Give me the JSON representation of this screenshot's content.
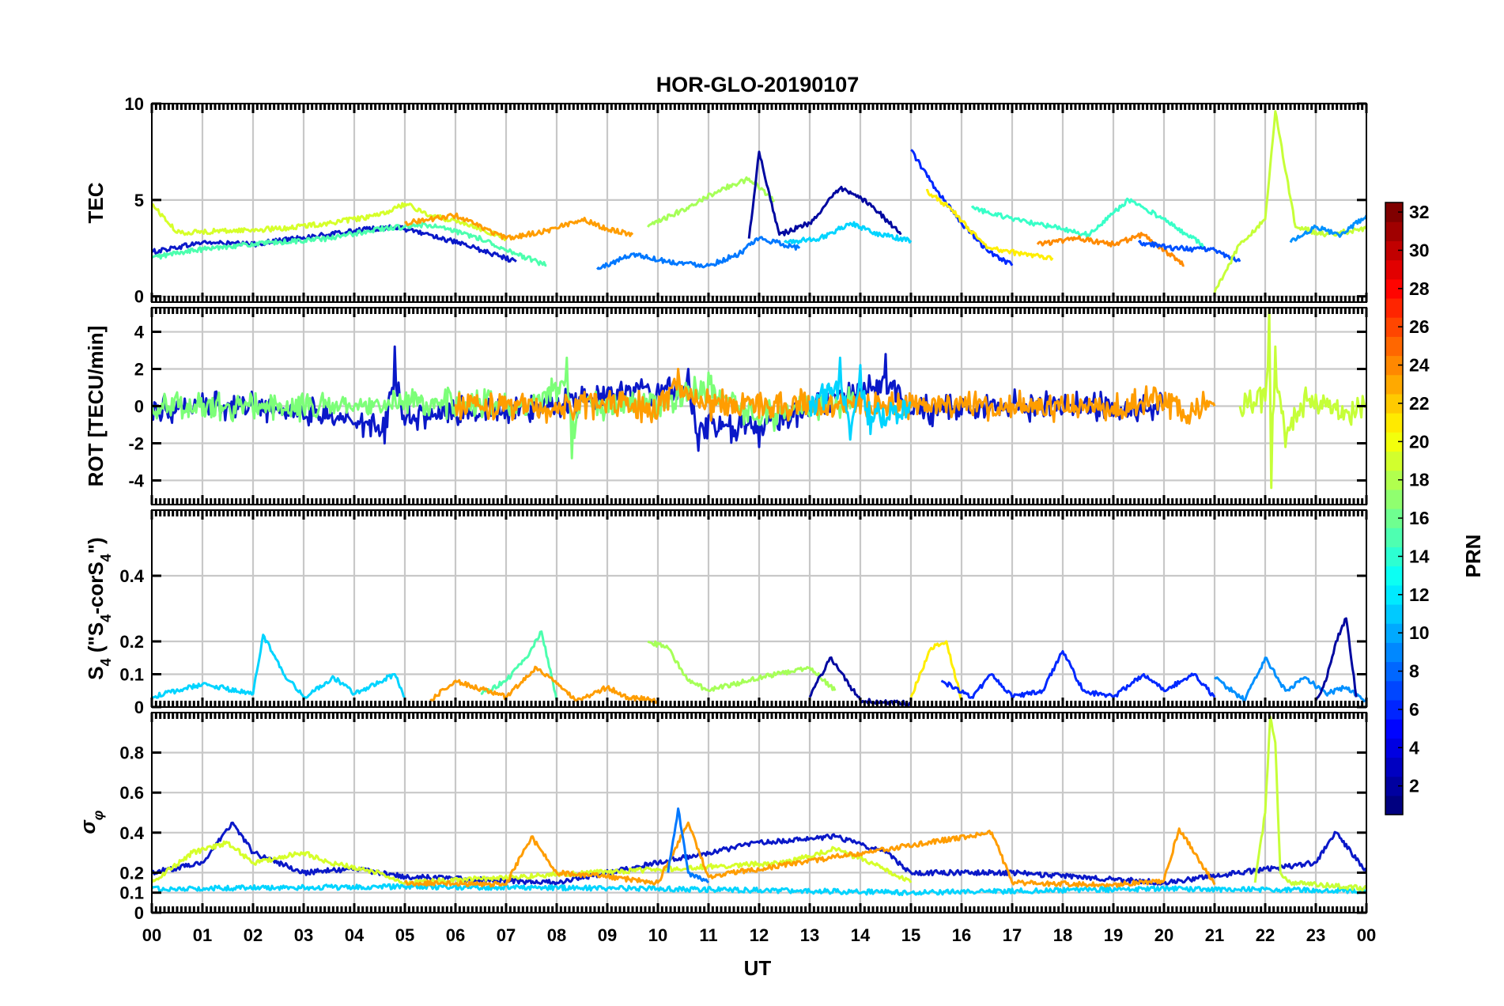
{
  "chart_data": {
    "type": "line",
    "title": "HOR-GLO-20190107",
    "x_label": "UT",
    "x_ticks": [
      "00",
      "01",
      "02",
      "03",
      "04",
      "05",
      "06",
      "07",
      "08",
      "09",
      "10",
      "11",
      "12",
      "13",
      "14",
      "15",
      "16",
      "17",
      "18",
      "19",
      "20",
      "21",
      "22",
      "23",
      "00"
    ],
    "x_range_hours": [
      0,
      24
    ],
    "colorbar": {
      "label": "PRN",
      "range": [
        1,
        32
      ],
      "ticks": [
        2,
        4,
        6,
        8,
        10,
        12,
        14,
        16,
        18,
        20,
        22,
        24,
        26,
        28,
        30,
        32
      ],
      "colormap": "jet"
    },
    "panels": [
      {
        "id": "tec",
        "ylabel": "TEC",
        "ylim": [
          -0.3,
          10
        ],
        "yticks": [
          0,
          5,
          10
        ],
        "series": [
          {
            "prn": 3,
            "color": "#0a18c8",
            "x": [
              0.0,
              1.0,
              2.0,
              2.8,
              3.5,
              4.0,
              4.8,
              5.5,
              6.5,
              7.2
            ],
            "y": [
              2.3,
              2.8,
              2.7,
              3.0,
              3.2,
              3.4,
              3.6,
              3.2,
              2.4,
              1.8
            ]
          },
          {
            "prn": 19,
            "color": "#d6ff2a",
            "x": [
              0.0,
              0.5,
              1.5,
              2.5,
              3.5,
              4.5,
              5.0,
              5.5,
              6.2,
              7.0
            ],
            "y": [
              4.8,
              3.3,
              3.4,
              3.5,
              3.8,
              4.2,
              4.8,
              4.2,
              3.8,
              3.0
            ]
          },
          {
            "prn": 15,
            "color": "#4cffae",
            "x": [
              0.0,
              0.6,
              1.5,
              2.5,
              3.5,
              4.5,
              5.5,
              6.5,
              7.2,
              7.8
            ],
            "y": [
              2.0,
              2.3,
              2.6,
              2.8,
              3.0,
              3.5,
              3.7,
              3.0,
              2.2,
              1.6
            ]
          },
          {
            "prn": 22,
            "color": "#ff9d00",
            "x": [
              5.0,
              6.0,
              7.0,
              7.8,
              8.5,
              9.0,
              9.5
            ],
            "y": [
              3.8,
              4.2,
              3.0,
              3.4,
              4.0,
              3.5,
              3.2
            ]
          },
          {
            "prn": 10,
            "color": "#0078ff",
            "x": [
              8.8,
              9.5,
              10.2,
              11.0,
              11.6,
              12.0,
              12.8
            ],
            "y": [
              1.4,
              2.2,
              1.8,
              1.6,
              2.2,
              3.0,
              2.5
            ]
          },
          {
            "prn": 17,
            "color": "#a6ff58",
            "x": [
              9.8,
              10.5,
              11.2,
              11.8,
              12.3
            ],
            "y": [
              3.6,
              4.5,
              5.5,
              6.1,
              5.0
            ]
          },
          {
            "prn": 2,
            "color": "#0008a0",
            "x": [
              11.8,
              12.0,
              12.4,
              13.0,
              13.6,
              14.2,
              14.8
            ],
            "y": [
              3.0,
              7.5,
              3.2,
              3.8,
              5.6,
              4.8,
              3.2
            ]
          },
          {
            "prn": 12,
            "color": "#00d4ff",
            "x": [
              12.5,
              13.2,
              13.8,
              14.4,
              15.0
            ],
            "y": [
              2.8,
              3.0,
              3.8,
              3.2,
              2.9
            ]
          },
          {
            "prn": 4,
            "color": "#0028ff",
            "x": [
              15.0,
              15.5,
              16.0,
              16.5,
              17.0
            ],
            "y": [
              7.6,
              5.5,
              3.8,
              2.4,
              1.6
            ]
          },
          {
            "prn": 20,
            "color": "#ffee00",
            "x": [
              15.3,
              15.8,
              16.5,
              17.2,
              17.8
            ],
            "y": [
              5.5,
              4.5,
              2.5,
              2.2,
              2.0
            ]
          },
          {
            "prn": 14,
            "color": "#38ffc8",
            "x": [
              16.2,
              17.0,
              17.8,
              18.5,
              19.3,
              20.0,
              20.8
            ],
            "y": [
              4.6,
              4.0,
              3.6,
              3.2,
              5.0,
              4.0,
              2.6
            ]
          },
          {
            "prn": 23,
            "color": "#ff8a00",
            "x": [
              17.5,
              18.3,
              19.0,
              19.6,
              20.4
            ],
            "y": [
              2.7,
              3.0,
              2.7,
              3.2,
              1.6
            ]
          },
          {
            "prn": 7,
            "color": "#0050ff",
            "x": [
              19.5,
              20.2,
              21.0,
              21.5
            ],
            "y": [
              2.8,
              2.5,
              2.4,
              1.8
            ]
          },
          {
            "prn": 18,
            "color": "#c6ff38",
            "x": [
              21.0,
              21.5,
              22.0,
              22.2,
              22.6,
              23.2,
              24.0
            ],
            "y": [
              0.2,
              2.7,
              4.0,
              9.6,
              3.6,
              3.2,
              3.5
            ]
          },
          {
            "prn": 9,
            "color": "#0090ff",
            "x": [
              22.5,
              23.0,
              23.5,
              24.0
            ],
            "y": [
              2.8,
              3.6,
              3.2,
              4.2
            ]
          }
        ]
      },
      {
        "id": "rot",
        "ylabel": "ROT [TECU/min]",
        "ylim": [
          -5.3,
          5.3
        ],
        "yticks": [
          -4,
          -2,
          0,
          2,
          4
        ],
        "series": [
          {
            "prn": 3,
            "color": "#0a18c8",
            "x": [
              0.0,
              2.0,
              4.6,
              4.8,
              5.0,
              8.0,
              10.6,
              10.8,
              12.0,
              14.5,
              15.0,
              17.0,
              20.0
            ],
            "y": [
              0.0,
              0.1,
              -2.0,
              3.2,
              -1.0,
              0.2,
              2.0,
              -2.4,
              -2.2,
              2.8,
              -0.4,
              0.1,
              -0.2
            ]
          },
          {
            "prn": 16,
            "color": "#7cff78",
            "x": [
              0.0,
              3.0,
              5.0,
              7.5,
              8.2,
              8.3,
              8.5,
              10.0,
              11.0,
              12.0,
              14.0
            ],
            "y": [
              0.1,
              -0.2,
              0.3,
              0.1,
              2.6,
              -2.8,
              0.4,
              0.0,
              1.8,
              -1.0,
              0.3
            ]
          },
          {
            "prn": 22,
            "color": "#ff9d00",
            "x": [
              6.0,
              8.0,
              9.0,
              10.0,
              10.4,
              11.0,
              17.0,
              19.0,
              19.8,
              20.4,
              21.0
            ],
            "y": [
              0.1,
              -0.3,
              0.4,
              -0.4,
              2.0,
              0.2,
              0.1,
              -0.4,
              1.0,
              -0.6,
              0.0
            ]
          },
          {
            "prn": 12,
            "color": "#00d4ff",
            "x": [
              13.0,
              13.6,
              13.8,
              14.0,
              14.2,
              15.0
            ],
            "y": [
              0.3,
              2.6,
              -1.8,
              2.2,
              -1.5,
              0.2
            ]
          },
          {
            "prn": 18,
            "color": "#c6ff38",
            "x": [
              21.5,
              22.0,
              22.08,
              22.12,
              22.2,
              22.4,
              22.8,
              23.5,
              24.0
            ],
            "y": [
              0.0,
              0.3,
              5.2,
              -4.4,
              3.2,
              -2.2,
              1.0,
              -0.6,
              0.1
            ]
          }
        ]
      },
      {
        "id": "s4",
        "ylabel": "S4 (\"S4-corS4\")",
        "ylim": [
          0,
          0.6
        ],
        "yticks": [
          0,
          0.1,
          0.2,
          0.4
        ],
        "series": [
          {
            "prn": 12,
            "color": "#00d4ff",
            "x": [
              0.0,
              1.0,
              2.0,
              2.2,
              2.6,
              3.0,
              3.6,
              4.0,
              4.8,
              5.0
            ],
            "y": [
              0.03,
              0.07,
              0.04,
              0.22,
              0.1,
              0.03,
              0.09,
              0.04,
              0.1,
              0.03
            ]
          },
          {
            "prn": 15,
            "color": "#4cffae",
            "x": [
              6.5,
              7.0,
              7.4,
              7.7,
              8.0
            ],
            "y": [
              0.04,
              0.08,
              0.15,
              0.23,
              0.02
            ]
          },
          {
            "prn": 22,
            "color": "#ff9d00",
            "x": [
              5.5,
              6.0,
              7.0,
              7.6,
              8.4,
              9.0,
              9.4,
              10.0
            ],
            "y": [
              0.02,
              0.08,
              0.03,
              0.12,
              0.02,
              0.06,
              0.03,
              0.02
            ]
          },
          {
            "prn": 17,
            "color": "#a6ff58",
            "x": [
              9.8,
              10.2,
              10.6,
              11.0,
              12.0,
              13.0,
              13.5
            ],
            "y": [
              0.2,
              0.18,
              0.08,
              0.05,
              0.09,
              0.12,
              0.05
            ]
          },
          {
            "prn": 2,
            "color": "#0008a0",
            "x": [
              13.0,
              13.4,
              14.0,
              15.0
            ],
            "y": [
              0.03,
              0.15,
              0.02,
              0.01
            ]
          },
          {
            "prn": 20,
            "color": "#ffee00",
            "x": [
              15.0,
              15.4,
              15.7,
              16.0
            ],
            "y": [
              0.03,
              0.18,
              0.2,
              0.02
            ]
          },
          {
            "prn": 4,
            "color": "#0028ff",
            "x": [
              15.6,
              16.2,
              16.6,
              17.0,
              17.6,
              18.0,
              18.4,
              19.0,
              19.6,
              20.0,
              20.6,
              21.0
            ],
            "y": [
              0.08,
              0.03,
              0.1,
              0.03,
              0.05,
              0.17,
              0.05,
              0.03,
              0.1,
              0.05,
              0.1,
              0.03
            ]
          },
          {
            "prn": 9,
            "color": "#0090ff",
            "x": [
              21.0,
              21.6,
              22.0,
              22.4,
              22.8,
              23.2,
              23.6,
              24.0
            ],
            "y": [
              0.09,
              0.02,
              0.15,
              0.05,
              0.09,
              0.04,
              0.06,
              0.02
            ]
          },
          {
            "prn": 2,
            "color": "#0008a0",
            "x": [
              23.0,
              23.2,
              23.4,
              23.6,
              23.8
            ],
            "y": [
              0.02,
              0.08,
              0.2,
              0.27,
              0.03
            ]
          }
        ]
      },
      {
        "id": "sigma",
        "ylabel": "σφ",
        "ylim": [
          0,
          1.0
        ],
        "yticks": [
          0,
          0.1,
          0.2,
          0.4,
          0.6,
          0.8
        ],
        "series": [
          {
            "prn": 3,
            "color": "#0a18c8",
            "x": [
              0.0,
              1.0,
              1.6,
              2.0,
              3.0,
              4.0,
              5.0,
              8.0,
              12.0,
              13.5,
              14.5,
              15.0,
              17.0,
              20.0,
              23.0,
              23.4,
              24.0
            ],
            "y": [
              0.2,
              0.25,
              0.45,
              0.3,
              0.2,
              0.22,
              0.18,
              0.15,
              0.35,
              0.38,
              0.3,
              0.2,
              0.2,
              0.15,
              0.25,
              0.4,
              0.2
            ]
          },
          {
            "prn": 19,
            "color": "#d6ff2a",
            "x": [
              0.0,
              0.8,
              1.5,
              2.0,
              3.0,
              3.5,
              4.5,
              5.0,
              12.5,
              13.5,
              14.2,
              15.0
            ],
            "y": [
              0.15,
              0.3,
              0.35,
              0.25,
              0.3,
              0.25,
              0.2,
              0.15,
              0.25,
              0.32,
              0.25,
              0.15
            ]
          },
          {
            "prn": 12,
            "color": "#00d4ff",
            "x": [
              0.0,
              5.0,
              10.0,
              15.0,
              20.0,
              24.0
            ],
            "y": [
              0.12,
              0.13,
              0.12,
              0.1,
              0.12,
              0.11
            ]
          },
          {
            "prn": 22,
            "color": "#ff9d00",
            "x": [
              5.0,
              7.0,
              7.5,
              8.0,
              9.0,
              10.0,
              10.6,
              11.0,
              16.6,
              17.0,
              19.0,
              20.0,
              20.3,
              21.0
            ],
            "y": [
              0.15,
              0.14,
              0.38,
              0.2,
              0.18,
              0.15,
              0.45,
              0.18,
              0.4,
              0.15,
              0.14,
              0.16,
              0.42,
              0.14
            ]
          },
          {
            "prn": 10,
            "color": "#0078ff",
            "x": [
              10.2,
              10.4,
              10.6,
              11.0
            ],
            "y": [
              0.2,
              0.52,
              0.2,
              0.15
            ]
          },
          {
            "prn": 18,
            "color": "#c6ff38",
            "x": [
              21.8,
              22.0,
              22.1,
              22.2,
              22.3,
              22.5,
              24.0
            ],
            "y": [
              0.15,
              0.5,
              0.98,
              0.85,
              0.2,
              0.15,
              0.12
            ]
          }
        ]
      }
    ]
  }
}
